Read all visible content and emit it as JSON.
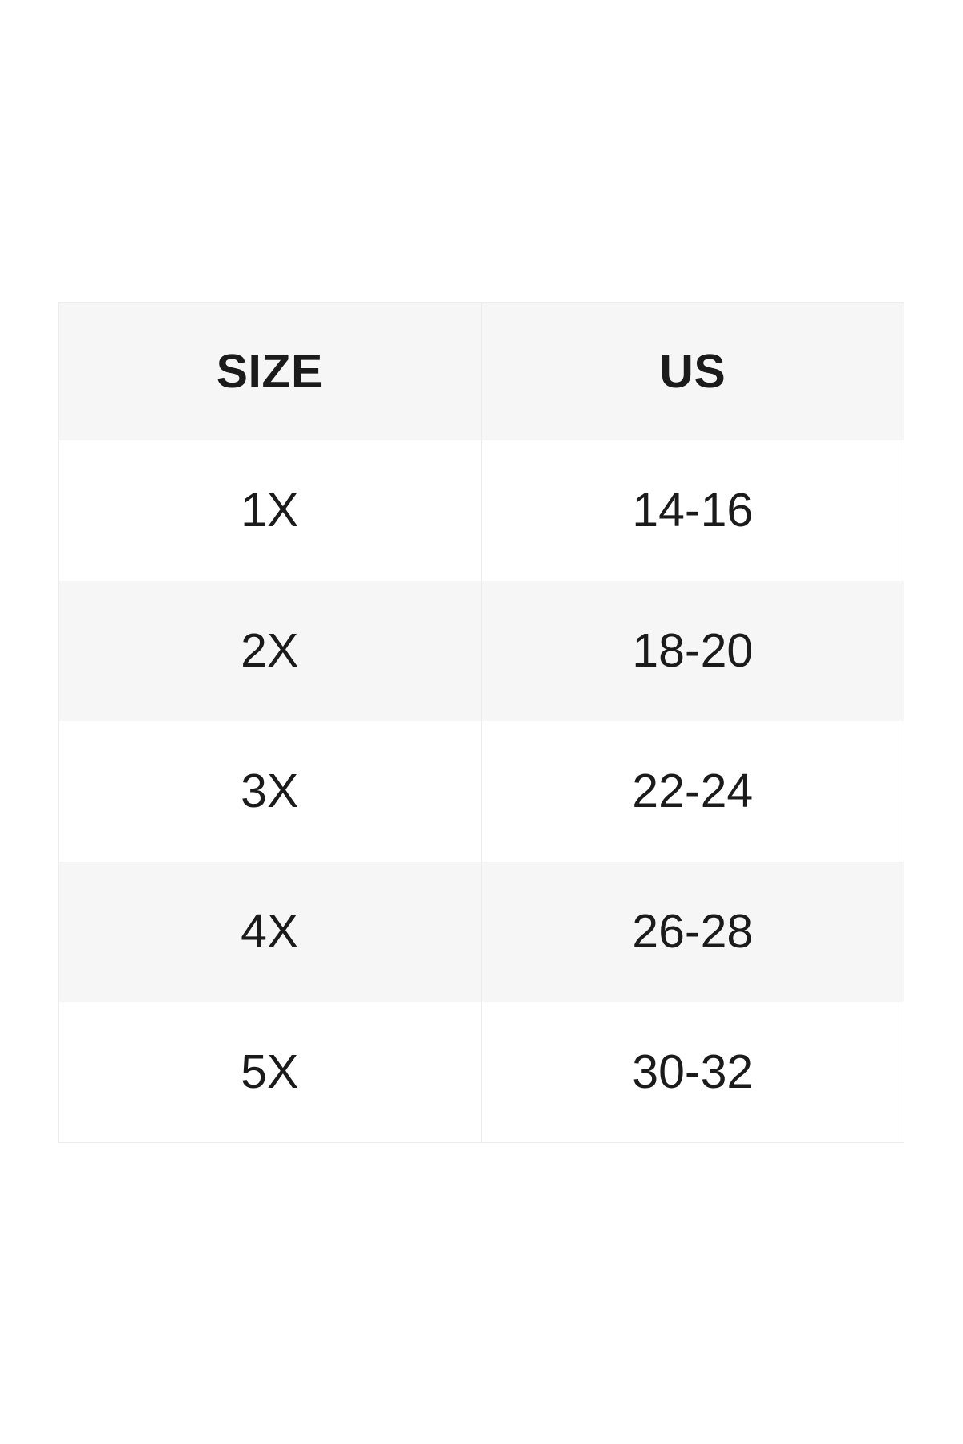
{
  "size_chart": {
    "columns": [
      {
        "key": "size",
        "label": "SIZE"
      },
      {
        "key": "us",
        "label": "US"
      }
    ],
    "rows": [
      {
        "size": "1X",
        "us": "14-16"
      },
      {
        "size": "2X",
        "us": "18-20"
      },
      {
        "size": "3X",
        "us": "22-24"
      },
      {
        "size": "4X",
        "us": "26-28"
      },
      {
        "size": "5X",
        "us": "30-32"
      }
    ],
    "colors": {
      "header_background": "#f6f6f6",
      "alternate_row_background": "#f6f6f6",
      "border": "#ececec",
      "text": "#1b1b1b",
      "page_background": "#ffffff"
    }
  }
}
